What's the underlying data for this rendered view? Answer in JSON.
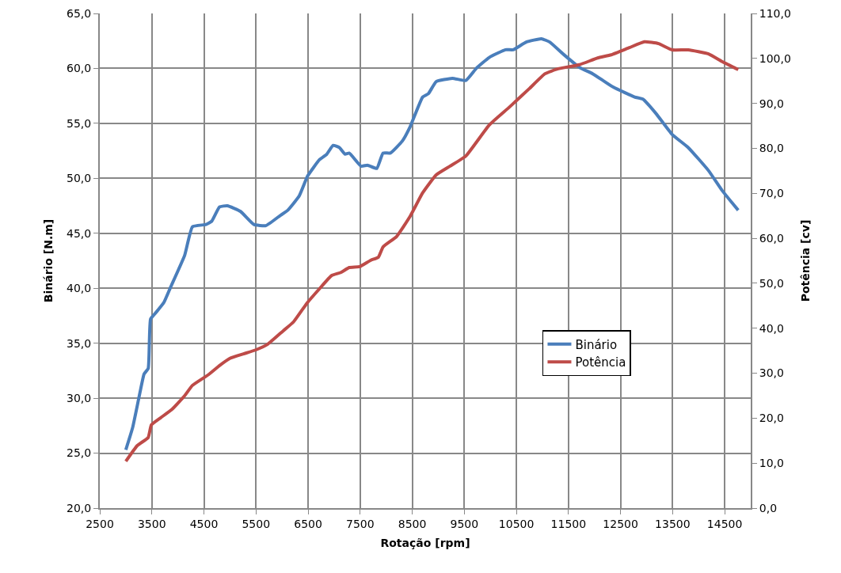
{
  "chart_data": {
    "type": "line",
    "xlabel": "Rotação [rpm]",
    "ylabel": "Binário [N.m]",
    "y2label": "Potência [cv]",
    "xlim": [
      2500,
      15000
    ],
    "xticks": [
      2500,
      3500,
      4500,
      5500,
      6500,
      7500,
      8500,
      9500,
      10500,
      11500,
      12500,
      13500,
      14500
    ],
    "ylim": [
      20,
      65
    ],
    "yticks": [
      {
        "value": 20,
        "label": "20,0"
      },
      {
        "value": 25,
        "label": "25,0"
      },
      {
        "value": 30,
        "label": "30,0"
      },
      {
        "value": 35,
        "label": "35,0"
      },
      {
        "value": 40,
        "label": "40,0"
      },
      {
        "value": 45,
        "label": "45,0"
      },
      {
        "value": 50,
        "label": "50,0"
      },
      {
        "value": 55,
        "label": "55,0"
      },
      {
        "value": 60,
        "label": "60,0"
      },
      {
        "value": 65,
        "label": "65,0"
      }
    ],
    "y2lim": [
      0,
      110
    ],
    "y2ticks": [
      {
        "value": 0,
        "label": "0,0"
      },
      {
        "value": 10,
        "label": "10,0"
      },
      {
        "value": 20,
        "label": "20,0"
      },
      {
        "value": 30,
        "label": "30,0"
      },
      {
        "value": 40,
        "label": "40,0"
      },
      {
        "value": 50,
        "label": "50,0"
      },
      {
        "value": 60,
        "label": "60,0"
      },
      {
        "value": 70,
        "label": "70,0"
      },
      {
        "value": 80,
        "label": "80,0"
      },
      {
        "value": 90,
        "label": "90,0"
      },
      {
        "value": 100,
        "label": "100,0"
      },
      {
        "value": 110,
        "label": "110,0"
      }
    ],
    "grid": true,
    "legend": "right",
    "marker": "none",
    "line_style": "solid",
    "series": [
      {
        "name": "Binário",
        "color": "#4a7ebb",
        "x": [
          3000,
          3130,
          3280,
          3350,
          3430,
          3475,
          3580,
          3730,
          3860,
          4130,
          4280,
          4540,
          4650,
          4800,
          4950,
          5200,
          5460,
          5690,
          5960,
          6110,
          6330,
          6490,
          6720,
          6860,
          6980,
          7100,
          7210,
          7290,
          7520,
          7640,
          7820,
          7940,
          8080,
          8310,
          8460,
          8700,
          8810,
          8960,
          9270,
          9530,
          9730,
          9980,
          10290,
          10440,
          10690,
          10980,
          11140,
          11400,
          11710,
          11970,
          12360,
          12770,
          12930,
          13180,
          13490,
          13800,
          14190,
          14450,
          14760
        ],
        "values": [
          25.3,
          27.3,
          30.7,
          32.2,
          32.7,
          37.2,
          37.8,
          38.7,
          40.1,
          43.0,
          45.6,
          45.8,
          46.1,
          47.4,
          47.5,
          47.0,
          45.8,
          45.7,
          46.6,
          47.1,
          48.4,
          50.2,
          51.7,
          52.2,
          53.0,
          52.8,
          52.2,
          52.3,
          51.1,
          51.2,
          50.9,
          52.3,
          52.3,
          53.4,
          54.7,
          57.4,
          57.7,
          58.8,
          59.1,
          58.9,
          60.0,
          61.0,
          61.7,
          61.7,
          62.4,
          62.7,
          62.4,
          61.3,
          60.1,
          59.5,
          58.3,
          57.4,
          57.2,
          55.9,
          54.0,
          52.8,
          50.7,
          48.9,
          47.1
        ]
      },
      {
        "name": "Potência",
        "color": "#be4b48",
        "axis": "y2",
        "x": [
          3000,
          3220,
          3430,
          3490,
          3670,
          3890,
          4130,
          4280,
          4590,
          4800,
          5000,
          5260,
          5500,
          5720,
          6020,
          6220,
          6480,
          6720,
          6950,
          7130,
          7290,
          7490,
          7700,
          7850,
          7940,
          8200,
          8460,
          8700,
          8960,
          9220,
          9530,
          9980,
          10340,
          10490,
          10750,
          11050,
          11300,
          11710,
          12060,
          12320,
          12670,
          12960,
          13230,
          13490,
          13800,
          14190,
          14450,
          14760
        ],
        "values": [
          10.4,
          13.9,
          15.7,
          18.5,
          20.1,
          22.0,
          25.0,
          27.3,
          29.7,
          31.7,
          33.3,
          34.3,
          35.2,
          36.4,
          39.4,
          41.4,
          45.6,
          48.8,
          51.7,
          52.4,
          53.5,
          53.7,
          55.1,
          55.8,
          58.1,
          60.4,
          64.9,
          70.1,
          74.1,
          76.0,
          78.3,
          85.2,
          88.9,
          90.5,
          93.3,
          96.6,
          97.7,
          98.6,
          100.1,
          100.8,
          102.4,
          103.7,
          103.3,
          101.9,
          101.9,
          101.0,
          99.3,
          97.5
        ]
      }
    ]
  }
}
